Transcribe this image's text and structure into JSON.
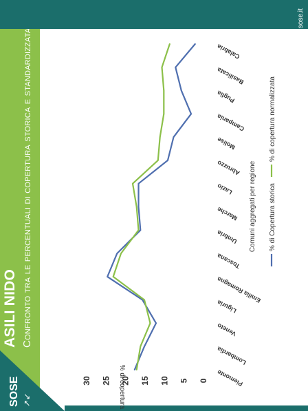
{
  "header": {
    "brand": "SOSE",
    "title": "ASILI NIDO",
    "subtitle": "Confronto tra le percentuali di copertura storica e standardizzata"
  },
  "footer": {
    "url": "www.sose.it"
  },
  "colors": {
    "green": "#8cc04a",
    "teal": "#1b6e6b",
    "blue": "#4f6faf",
    "axis_text": "#333333"
  },
  "chart_data": {
    "type": "line",
    "categories": [
      "Piemonte",
      "Lombardia",
      "Veneto",
      "Liguria",
      "Emilia Romagna",
      "Toscana",
      "Umbria",
      "Marche",
      "Lazio",
      "Abruzzo",
      "Molise",
      "Campania",
      "Puglia",
      "Basilicata",
      "Calabria"
    ],
    "series": [
      {
        "name": "% di Copertura storica",
        "color": "#4f6faf",
        "values": [
          17.5,
          15,
          12,
          15.5,
          24.5,
          22,
          16,
          16.5,
          16.5,
          9,
          7.5,
          3,
          5.5,
          7,
          2
        ]
      },
      {
        "name": "% di copertura normalizzata",
        "color": "#8cc04a",
        "values": [
          17,
          16,
          13.5,
          15,
          23,
          21,
          16.5,
          17,
          18,
          11.5,
          11,
          10,
          10,
          10.5,
          8.5
        ]
      }
    ],
    "ylabel": "% di copertura",
    "xlabel": "Comuni aggregati per regione",
    "ylim": [
      0,
      30
    ],
    "yticks": [
      0,
      5,
      10,
      15,
      20,
      25,
      30
    ],
    "grid": false,
    "legend": "bottom"
  }
}
